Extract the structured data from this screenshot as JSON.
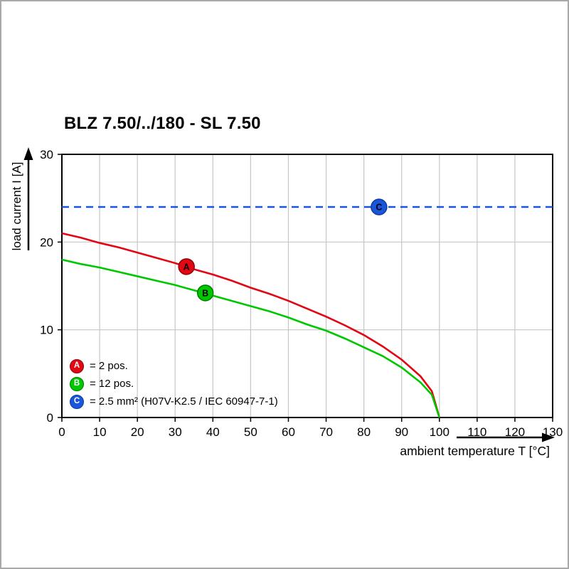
{
  "page": {
    "title": "BLZ 7.50/../180 - SL 7.50"
  },
  "chart_data": {
    "type": "line",
    "title": "BLZ 7.50/../180 - SL 7.50",
    "xlabel": "ambient temperature T [°C]",
    "ylabel": "load current I [A]",
    "xlim": [
      0,
      130
    ],
    "ylim": [
      0,
      30
    ],
    "x_ticks": [
      0,
      10,
      20,
      30,
      40,
      50,
      60,
      70,
      80,
      90,
      100,
      110,
      120,
      130
    ],
    "y_ticks": [
      0,
      10,
      20,
      30
    ],
    "grid": true,
    "grid_color": "#c6c6c6",
    "axis_color": "#000000",
    "series": [
      {
        "name": "A",
        "label": "2 pos.",
        "color": "#e30613",
        "ring": "#8f0410",
        "style": "solid",
        "marker_at": [
          33,
          17.2
        ],
        "points": [
          [
            0,
            21
          ],
          [
            5,
            20.5
          ],
          [
            10,
            19.9
          ],
          [
            15,
            19.4
          ],
          [
            20,
            18.8
          ],
          [
            25,
            18.2
          ],
          [
            30,
            17.6
          ],
          [
            35,
            16.9
          ],
          [
            40,
            16.3
          ],
          [
            45,
            15.6
          ],
          [
            50,
            14.8
          ],
          [
            55,
            14.1
          ],
          [
            60,
            13.3
          ],
          [
            65,
            12.4
          ],
          [
            70,
            11.5
          ],
          [
            75,
            10.5
          ],
          [
            80,
            9.4
          ],
          [
            85,
            8.1
          ],
          [
            90,
            6.6
          ],
          [
            95,
            4.7
          ],
          [
            98,
            3.0
          ],
          [
            100,
            0
          ]
        ]
      },
      {
        "name": "B",
        "label": "12 pos.",
        "color": "#00c800",
        "ring": "#007a00",
        "style": "solid",
        "marker_at": [
          38,
          14.2
        ],
        "points": [
          [
            0,
            18
          ],
          [
            5,
            17.5
          ],
          [
            10,
            17.1
          ],
          [
            15,
            16.6
          ],
          [
            20,
            16.1
          ],
          [
            25,
            15.6
          ],
          [
            30,
            15.1
          ],
          [
            35,
            14.5
          ],
          [
            40,
            13.9
          ],
          [
            45,
            13.3
          ],
          [
            50,
            12.7
          ],
          [
            55,
            12.1
          ],
          [
            60,
            11.4
          ],
          [
            65,
            10.6
          ],
          [
            70,
            9.9
          ],
          [
            75,
            9.0
          ],
          [
            80,
            8.0
          ],
          [
            85,
            7.0
          ],
          [
            90,
            5.7
          ],
          [
            95,
            4.0
          ],
          [
            98,
            2.6
          ],
          [
            100,
            0
          ]
        ]
      },
      {
        "name": "C",
        "label": "2.5 mm² (H07V-K2.5 / IEC 60947-7-1)",
        "color": "#1a56db",
        "ring": "#0d3a9e",
        "style": "dashed",
        "marker_at": [
          84,
          24
        ],
        "points": [
          [
            0,
            24
          ],
          [
            130,
            24
          ]
        ]
      }
    ],
    "legend": [
      {
        "key": "A",
        "label": "= 2 pos."
      },
      {
        "key": "B",
        "label": "= 12 pos."
      },
      {
        "key": "C",
        "label": "= 2.5 mm² (H07V-K2.5 / IEC 60947-7-1)"
      }
    ],
    "legend_position": "lower-left-inside"
  }
}
